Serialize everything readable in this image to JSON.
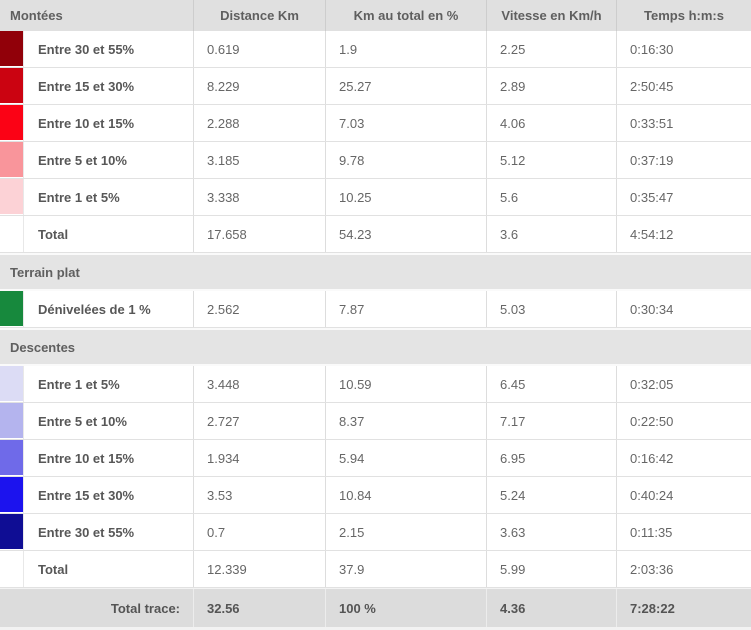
{
  "chart_data": {
    "type": "table",
    "columns": [
      "Distance Km",
      "Km au total en %",
      "Vitesse en Km/h",
      "Temps h:m:s"
    ],
    "sections": [
      {
        "name": "Montées",
        "rows": [
          {
            "label": "Entre 30 et 55%",
            "color": "#910009",
            "distance": "0.619",
            "pct_total": "1.9",
            "vitesse": "2.25",
            "temps": "0:16:30"
          },
          {
            "label": "Entre 15 et 30%",
            "color": "#cb0311",
            "distance": "8.229",
            "pct_total": "25.27",
            "vitesse": "2.89",
            "temps": "2:50:45"
          },
          {
            "label": "Entre 10 et 15%",
            "color": "#fb0215",
            "distance": "2.288",
            "pct_total": "7.03",
            "vitesse": "4.06",
            "temps": "0:33:51"
          },
          {
            "label": "Entre 5 et 10%",
            "color": "#f9959b",
            "distance": "3.185",
            "pct_total": "9.78",
            "vitesse": "5.12",
            "temps": "0:37:19"
          },
          {
            "label": "Entre 1 et 5%",
            "color": "#fcd2d6",
            "distance": "3.338",
            "pct_total": "10.25",
            "vitesse": "5.6",
            "temps": "0:35:47"
          },
          {
            "label": "Total",
            "color": "",
            "distance": "17.658",
            "pct_total": "54.23",
            "vitesse": "3.6",
            "temps": "4:54:12"
          }
        ]
      },
      {
        "name": "Terrain plat",
        "rows": [
          {
            "label": "Dénivelées de 1 %",
            "color": "#17893d",
            "distance": "2.562",
            "pct_total": "7.87",
            "vitesse": "5.03",
            "temps": "0:30:34"
          }
        ]
      },
      {
        "name": "Descentes",
        "rows": [
          {
            "label": "Entre 1 et 5%",
            "color": "#dcdcf5",
            "distance": "3.448",
            "pct_total": "10.59",
            "vitesse": "6.45",
            "temps": "0:32:05"
          },
          {
            "label": "Entre 5 et 10%",
            "color": "#b4b4ee",
            "distance": "2.727",
            "pct_total": "8.37",
            "vitesse": "7.17",
            "temps": "0:22:50"
          },
          {
            "label": "Entre 10 et 15%",
            "color": "#6f6ae9",
            "distance": "1.934",
            "pct_total": "5.94",
            "vitesse": "6.95",
            "temps": "0:16:42"
          },
          {
            "label": "Entre 15 et 30%",
            "color": "#1c13ee",
            "distance": "3.53",
            "pct_total": "10.84",
            "vitesse": "5.24",
            "temps": "0:40:24"
          },
          {
            "label": "Entre 30 et 55%",
            "color": "#0f0d94",
            "distance": "0.7",
            "pct_total": "2.15",
            "vitesse": "3.63",
            "temps": "0:11:35"
          },
          {
            "label": "Total",
            "color": "",
            "distance": "12.339",
            "pct_total": "37.9",
            "vitesse": "5.99",
            "temps": "2:03:36"
          }
        ]
      }
    ],
    "footer": {
      "label": "Total trace:",
      "distance": "32.56",
      "pct_total": "100 %",
      "vitesse": "4.36",
      "temps": "7:28:22"
    }
  }
}
